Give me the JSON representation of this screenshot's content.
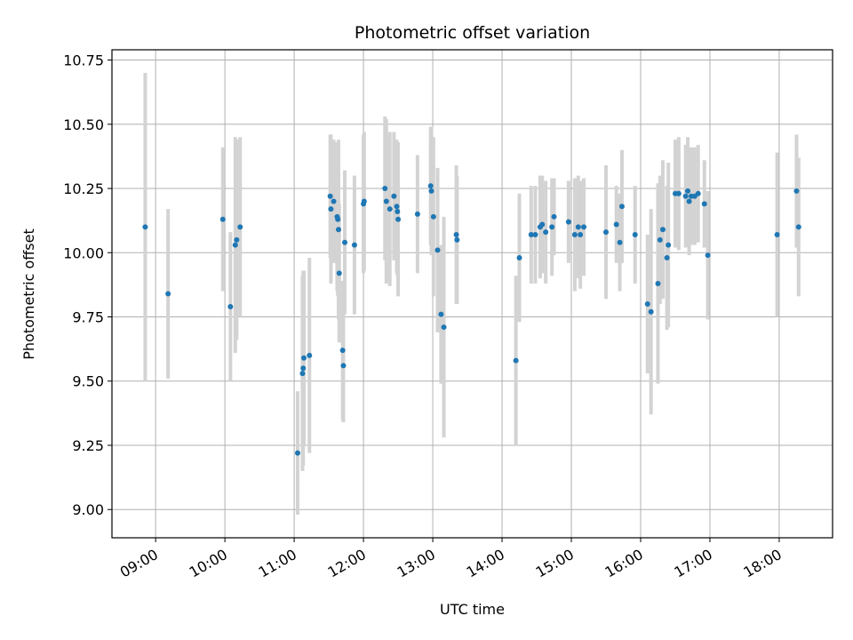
{
  "chart_data": {
    "type": "scatter",
    "title": "Photometric offset variation",
    "xlabel": "UTC time",
    "ylabel": "Photometric offset",
    "x_unit": "UTC hour (decimal)",
    "xlim": [
      8.37,
      18.77
    ],
    "ylim": [
      8.89,
      10.79
    ],
    "xticks": [
      9,
      10,
      11,
      12,
      13,
      14,
      15,
      16,
      17,
      18
    ],
    "xtick_labels": [
      "09:00",
      "10:00",
      "11:00",
      "12:00",
      "13:00",
      "14:00",
      "15:00",
      "16:00",
      "17:00",
      "18:00"
    ],
    "yticks": [
      9.0,
      9.25,
      9.5,
      9.75,
      10.0,
      10.25,
      10.5,
      10.75
    ],
    "ytick_labels": [
      "9.00",
      "9.25",
      "9.50",
      "9.75",
      "10.00",
      "10.25",
      "10.50",
      "10.75"
    ],
    "grid": true,
    "legend": "none",
    "colors": {
      "point": "#1f77b4",
      "errorbar": "#d3d3d3",
      "grid": "#b0b0b0"
    },
    "points": [
      [
        8.85,
        10.1,
        0.6
      ],
      [
        9.18,
        9.84,
        0.33
      ],
      [
        9.97,
        10.13,
        0.28
      ],
      [
        10.08,
        9.79,
        0.29
      ],
      [
        10.15,
        10.03,
        0.42
      ],
      [
        10.17,
        10.05,
        0.39
      ],
      [
        10.22,
        10.1,
        0.35
      ],
      [
        11.05,
        9.22,
        0.24
      ],
      [
        11.12,
        9.53,
        0.38
      ],
      [
        11.13,
        9.55,
        0.38
      ],
      [
        11.14,
        9.59,
        0.34
      ],
      [
        11.22,
        9.6,
        0.38
      ],
      [
        11.52,
        10.22,
        0.24
      ],
      [
        11.53,
        10.17,
        0.29
      ],
      [
        11.57,
        10.2,
        0.24
      ],
      [
        11.62,
        10.14,
        0.29
      ],
      [
        11.63,
        10.13,
        0.3
      ],
      [
        11.64,
        10.09,
        0.35
      ],
      [
        11.65,
        9.92,
        0.27
      ],
      [
        11.7,
        9.62,
        0.27
      ],
      [
        11.71,
        9.56,
        0.22
      ],
      [
        11.73,
        10.04,
        0.28
      ],
      [
        11.87,
        10.03,
        0.27
      ],
      [
        12.0,
        10.19,
        0.27
      ],
      [
        12.01,
        10.2,
        0.27
      ],
      [
        12.31,
        10.25,
        0.28
      ],
      [
        12.33,
        10.2,
        0.32
      ],
      [
        12.38,
        10.17,
        0.3
      ],
      [
        12.44,
        10.22,
        0.25
      ],
      [
        12.48,
        10.18,
        0.26
      ],
      [
        12.49,
        10.16,
        0.25
      ],
      [
        12.5,
        10.13,
        0.3
      ],
      [
        12.78,
        10.15,
        0.23
      ],
      [
        12.97,
        10.26,
        0.23
      ],
      [
        12.98,
        10.24,
        0.25
      ],
      [
        13.01,
        10.14,
        0.31
      ],
      [
        13.07,
        10.01,
        0.32
      ],
      [
        13.12,
        9.76,
        0.27
      ],
      [
        13.16,
        9.71,
        0.43
      ],
      [
        13.34,
        10.07,
        0.27
      ],
      [
        13.35,
        10.05,
        0.25
      ],
      [
        14.2,
        9.58,
        0.33
      ],
      [
        14.25,
        9.98,
        0.25
      ],
      [
        14.42,
        10.07,
        0.19
      ],
      [
        14.48,
        10.07,
        0.19
      ],
      [
        14.55,
        10.1,
        0.2
      ],
      [
        14.58,
        10.11,
        0.19
      ],
      [
        14.63,
        10.08,
        0.2
      ],
      [
        14.75,
        10.14,
        0.15
      ],
      [
        14.72,
        10.1,
        0.19
      ],
      [
        14.96,
        10.12,
        0.16
      ],
      [
        15.05,
        10.07,
        0.22
      ],
      [
        15.1,
        10.1,
        0.2
      ],
      [
        15.13,
        10.07,
        0.21
      ],
      [
        15.18,
        10.1,
        0.19
      ],
      [
        15.5,
        10.08,
        0.26
      ],
      [
        15.65,
        10.11,
        0.15
      ],
      [
        15.7,
        10.04,
        0.19
      ],
      [
        15.73,
        10.18,
        0.22
      ],
      [
        15.92,
        10.07,
        0.19
      ],
      [
        16.1,
        9.8,
        0.27
      ],
      [
        16.15,
        9.77,
        0.4
      ],
      [
        16.25,
        9.88,
        0.39
      ],
      [
        16.28,
        10.05,
        0.25
      ],
      [
        16.32,
        10.09,
        0.27
      ],
      [
        16.38,
        9.98,
        0.28
      ],
      [
        16.4,
        10.03,
        0.32
      ],
      [
        16.5,
        10.23,
        0.21
      ],
      [
        16.55,
        10.23,
        0.22
      ],
      [
        16.65,
        10.22,
        0.2
      ],
      [
        16.68,
        10.24,
        0.21
      ],
      [
        16.7,
        10.2,
        0.21
      ],
      [
        16.73,
        10.22,
        0.19
      ],
      [
        16.78,
        10.22,
        0.19
      ],
      [
        16.83,
        10.23,
        0.19
      ],
      [
        16.92,
        10.19,
        0.17
      ],
      [
        16.97,
        9.99,
        0.25
      ],
      [
        17.97,
        10.07,
        0.32
      ],
      [
        18.25,
        10.24,
        0.22
      ],
      [
        18.28,
        10.1,
        0.27
      ]
    ]
  }
}
